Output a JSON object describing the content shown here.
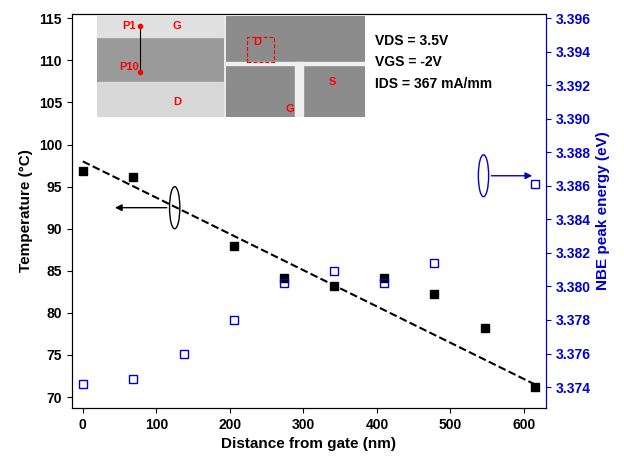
{
  "chart_data": {
    "type": "scatter",
    "x_label": "Distance from gate (nm)",
    "y_label": "Temperature (°C)",
    "y2_label": "NBE peak energy (eV)",
    "annotations": [
      "VDS = 3.5V",
      "VGS = -2V",
      "IDS = 367 mA/mm"
    ],
    "inset_labels": [
      "P1",
      "P10",
      "G",
      "D",
      "D",
      "S",
      "G"
    ],
    "xlim": [
      -15,
      630
    ],
    "xticks": [
      0,
      100,
      200,
      300,
      400,
      500,
      600
    ],
    "ylim": [
      68.7,
      115.5
    ],
    "yticks": [
      70,
      75,
      80,
      85,
      90,
      95,
      100,
      105,
      110,
      115
    ],
    "y2lim": [
      3.37275,
      3.39624
    ],
    "y2ticks": [
      {
        "value": 3.374,
        "label": "3.374"
      },
      {
        "value": 3.376,
        "label": "3.376"
      },
      {
        "value": 3.378,
        "label": "3.378"
      },
      {
        "value": 3.38,
        "label": "3.380"
      },
      {
        "value": 3.382,
        "label": "3.382"
      },
      {
        "value": 3.384,
        "label": "3.384"
      },
      {
        "value": 3.386,
        "label": "3.386"
      },
      {
        "value": 3.388,
        "label": "3.388"
      },
      {
        "value": 3.39,
        "label": "3.390"
      },
      {
        "value": 3.392,
        "label": "3.392"
      },
      {
        "value": 3.394,
        "label": "3.394"
      },
      {
        "value": 3.396,
        "label": "3.396"
      }
    ],
    "grid": false,
    "series": [
      {
        "type": "scatter",
        "color": "#000000",
        "marker": "filled_square",
        "x": [
          0,
          68,
          205,
          273,
          342,
          410,
          478,
          547,
          615
        ],
        "values": [
          96.8,
          96.2,
          88.0,
          84.2,
          83.2,
          84.2,
          82.3,
          78.2,
          71.2
        ]
      },
      {
        "type": "line",
        "color": "#000000",
        "line_style": "dashed",
        "x": [
          0,
          615
        ],
        "values": [
          98.0,
          71.5
        ]
      },
      {
        "type": "scatter",
        "color": "#0000cc",
        "marker": "open_square",
        "axis": "y2",
        "x": [
          0,
          68,
          137,
          205,
          273,
          342,
          410,
          478,
          615
        ],
        "values": [
          3.3742,
          3.3745,
          3.376,
          3.378,
          3.3802,
          3.3809,
          3.3802,
          3.3814,
          3.3861
        ]
      }
    ]
  }
}
